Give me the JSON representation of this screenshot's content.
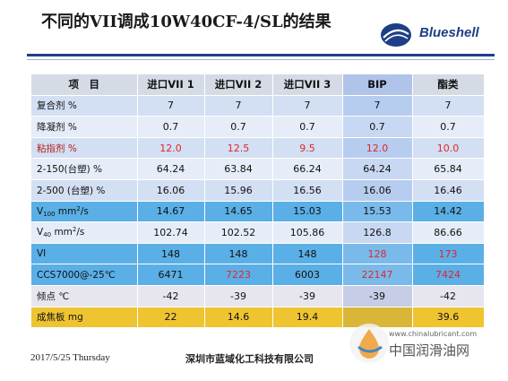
{
  "slide": {
    "title": "不同的VII调成10W40CF-4/SL的结果",
    "logo_text": "Blueshell"
  },
  "table": {
    "header": [
      "项　目",
      "进口VII 1",
      "进口VII 2",
      "进口VII 3",
      "BIP",
      "酯类"
    ],
    "rows": [
      {
        "label": "复合剂  %",
        "values": [
          "7",
          "7",
          "7",
          "7",
          "7"
        ]
      },
      {
        "label": "降凝剂  %",
        "values": [
          "0.7",
          "0.7",
          "0.7",
          "0.7",
          "0.7"
        ]
      },
      {
        "label": "粘指剂  %",
        "values": [
          "12.0",
          "12.5",
          "9.5",
          "12.0",
          "10.0"
        ]
      },
      {
        "label": "2-150(台塑)  %",
        "values": [
          "64.24",
          "63.84",
          "66.24",
          "64.24",
          "65.84"
        ]
      },
      {
        "label": "2-500 (台塑) %",
        "values": [
          "16.06",
          "15.96",
          "16.56",
          "16.06",
          "16.46"
        ]
      },
      {
        "label_main": "V",
        "label_sub": "100",
        "label_rest": " mm",
        "label_sup": "2",
        "label_tail": "/s",
        "values": [
          "14.67",
          "14.65",
          "15.03",
          "15.53",
          "14.42"
        ]
      },
      {
        "label_main": "V",
        "label_sub": "40",
        "label_rest": " mm",
        "label_sup": "2",
        "label_tail": "/s",
        "values": [
          "102.74",
          "102.52",
          "105.86",
          "126.8",
          "86.66"
        ]
      },
      {
        "label": "VI",
        "values": [
          "148",
          "148",
          "148",
          "128",
          "173"
        ]
      },
      {
        "label": "CCS7000@-25℃",
        "values": [
          "6471",
          "7223",
          "6003",
          "22147",
          "7424"
        ]
      },
      {
        "label": "倾点  ℃",
        "values": [
          "-42",
          "-39",
          "-39",
          "-39",
          "-42"
        ]
      },
      {
        "label": "成焦板  mg",
        "values": [
          "22",
          "14.6",
          "19.4",
          "",
          "39.6"
        ]
      }
    ]
  },
  "footer": {
    "date": "2017/5/25 Thursday",
    "company": "深圳市蓝域化工科技有限公司"
  },
  "watermark": {
    "url": "www.chinalubricant.com",
    "name": "中国润滑油网"
  },
  "colors": {
    "brand_blue": "#1d3f86",
    "highlight_red": "#e0262c",
    "row_highlight_blue": "#5aafe6",
    "row_gold": "#efc431"
  }
}
